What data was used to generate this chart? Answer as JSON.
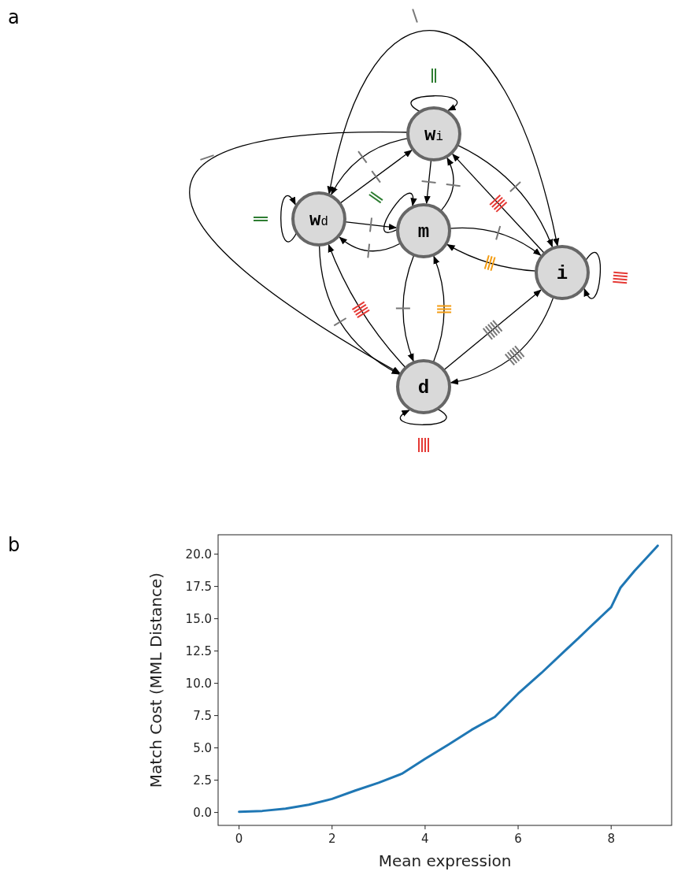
{
  "chart_data": [
    {
      "type": "other",
      "annotations": [
        "a",
        "w$_{d}$",
        "w$_{i}$",
        "m",
        "i",
        "d"
      ]
    },
    {
      "type": "line",
      "annotations": [
        "b"
      ],
      "xlabel": "Mean expression",
      "ylabel": "Match Cost (MML Distance)",
      "x": [
        0,
        0.5,
        1,
        1.5,
        2,
        2.5,
        3,
        3.5,
        4,
        4.5,
        5,
        5.5,
        6,
        6.5,
        7,
        7.3,
        7.5,
        8,
        8.2,
        8.5,
        9
      ],
      "series": [
        {
          "color": "#1f77b4",
          "values": [
            0.05,
            0.12,
            0.3,
            0.6,
            1.05,
            1.7,
            2.3,
            3.0,
            4.15,
            5.25,
            6.4,
            7.4,
            9.2,
            10.8,
            12.5,
            13.5,
            14.2,
            15.9,
            17.4,
            18.7,
            20.65
          ]
        }
      ],
      "xlim": [
        -0.45,
        9.3
      ],
      "ylim": [
        -1,
        21.5
      ],
      "xticks": [
        0,
        2,
        4,
        6,
        8
      ],
      "yticks": [
        {
          "value": 0,
          "label": "0.0"
        },
        {
          "value": 2.5,
          "label": "2.5"
        },
        {
          "value": 5,
          "label": "5.0"
        },
        {
          "value": 7.5,
          "label": "7.5"
        },
        {
          "value": 10,
          "label": "10.0"
        },
        {
          "value": 12.5,
          "label": "12.5"
        },
        {
          "value": 15,
          "label": "15.0"
        },
        {
          "value": 17.5,
          "label": "17.5"
        },
        {
          "value": 20,
          "label": "20.0"
        }
      ]
    }
  ]
}
